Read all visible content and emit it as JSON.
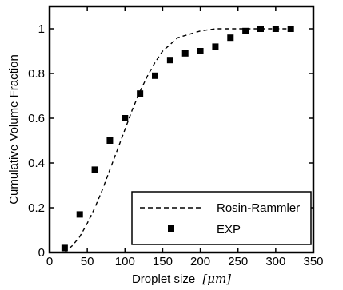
{
  "chart_data": {
    "type": "scatter",
    "xlabel": "Droplet size",
    "xlabel_unit": "[μm]",
    "ylabel": "Cumulative Volume Fraction",
    "xlim": [
      0,
      350
    ],
    "ylim": [
      0,
      1.1
    ],
    "xticks": [
      0,
      50,
      100,
      150,
      200,
      250,
      300,
      350
    ],
    "yticks": [
      0,
      0.2,
      0.4,
      0.6,
      0.8,
      1
    ],
    "ytick_labels": [
      "0",
      "0.2",
      "0.4",
      "0.6",
      "0.8",
      "1"
    ],
    "legend_position": "lower-right",
    "series": [
      {
        "name": "Rosin-Rammler",
        "style": "dashed-line",
        "color": "#000000",
        "x": [
          0,
          20,
          30,
          40,
          50,
          60,
          70,
          80,
          90,
          100,
          110,
          120,
          130,
          140,
          150,
          160,
          170,
          180,
          190,
          200,
          210,
          220,
          230,
          240,
          250,
          260,
          270,
          280,
          300,
          320
        ],
        "y": [
          0.0,
          0.0,
          0.03,
          0.07,
          0.13,
          0.2,
          0.28,
          0.37,
          0.46,
          0.55,
          0.64,
          0.72,
          0.79,
          0.85,
          0.9,
          0.93,
          0.96,
          0.97,
          0.98,
          0.99,
          0.995,
          1.0,
          1.0,
          1.0,
          1.0,
          1.0,
          1.0,
          1.0,
          1.0,
          1.0
        ]
      },
      {
        "name": "EXP",
        "style": "square-markers",
        "color": "#000000",
        "x": [
          20,
          40,
          60,
          80,
          100,
          120,
          140,
          160,
          180,
          200,
          220,
          240,
          260,
          280,
          300,
          320
        ],
        "y": [
          0.02,
          0.17,
          0.37,
          0.5,
          0.6,
          0.71,
          0.79,
          0.86,
          0.89,
          0.9,
          0.92,
          0.96,
          0.99,
          1.0,
          1.0,
          1.0
        ]
      }
    ]
  }
}
